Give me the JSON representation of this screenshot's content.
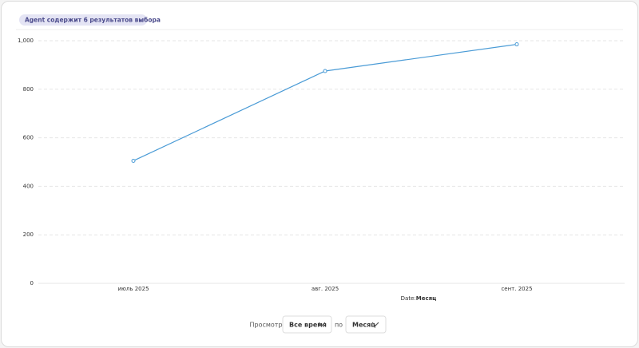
{
  "filter_chip": {
    "label": "Agent содержит 6 результатов выбора",
    "close": "×"
  },
  "chart_data": {
    "type": "line",
    "categories": [
      "июль 2025",
      "авг. 2025",
      "сент. 2025"
    ],
    "series": [
      {
        "color": "#4a9bd6",
        "values": [
          505,
          875,
          985
        ]
      }
    ],
    "ylim": [
      0,
      1000
    ],
    "yticks": [
      0,
      200,
      400,
      600,
      800,
      {
        "value": 1000,
        "label": "1,000"
      }
    ],
    "grid": true,
    "xlabel_key": "Date:",
    "xlabel_value": "Месяц"
  },
  "controls": {
    "view_label": "Просмотр",
    "period": "Все время",
    "by_label": "по",
    "granularity": "Месяц"
  }
}
